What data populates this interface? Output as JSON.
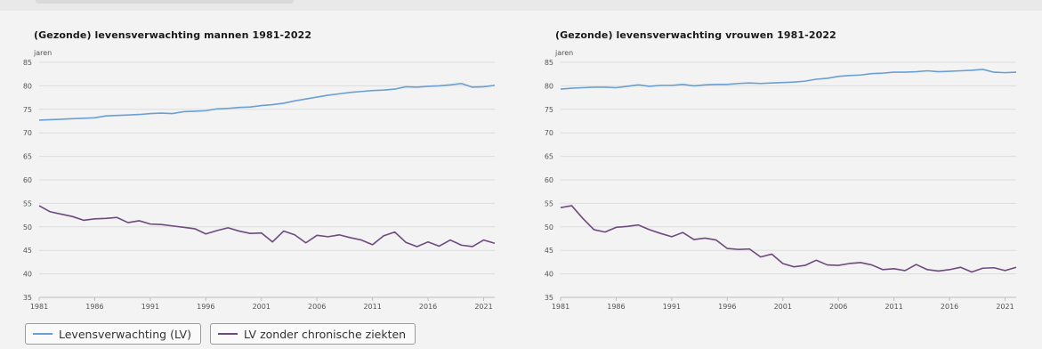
{
  "colors": {
    "lv": "#6a9fd6",
    "lv_zonder": "#6e4a7e",
    "grid": "#dcdcdc",
    "axis_text": "#555555"
  },
  "legend": [
    {
      "label": "Levensverwachting (LV)",
      "color": "#6a9fd6"
    },
    {
      "label": "LV zonder chronische ziekten",
      "color": "#6e4a7e"
    }
  ],
  "chart_data": [
    {
      "type": "line",
      "title": "(Gezonde) levensverwachting mannen 1981-2022",
      "ylabel": "jaren",
      "xlabel": "",
      "ylim": [
        35,
        85
      ],
      "yticks": [
        35,
        40,
        45,
        50,
        55,
        60,
        65,
        70,
        75,
        80,
        85
      ],
      "xlim": [
        1981,
        2022
      ],
      "xticks": [
        1981,
        1986,
        1991,
        1996,
        2001,
        2006,
        2011,
        2016,
        2021
      ],
      "grid": true,
      "legend_placement": "bottom-left",
      "x": [
        1981,
        1982,
        1983,
        1984,
        1985,
        1986,
        1987,
        1988,
        1989,
        1990,
        1991,
        1992,
        1993,
        1994,
        1995,
        1996,
        1997,
        1998,
        1999,
        2000,
        2001,
        2002,
        2003,
        2004,
        2005,
        2006,
        2007,
        2008,
        2009,
        2010,
        2011,
        2012,
        2013,
        2014,
        2015,
        2016,
        2017,
        2018,
        2019,
        2020,
        2021,
        2022
      ],
      "series": [
        {
          "name": "Levensverwachting (LV)",
          "values": [
            72.7,
            72.8,
            72.9,
            73.0,
            73.1,
            73.2,
            73.6,
            73.7,
            73.8,
            73.9,
            74.1,
            74.2,
            74.1,
            74.5,
            74.6,
            74.7,
            75.1,
            75.2,
            75.4,
            75.5,
            75.8,
            76.0,
            76.3,
            76.8,
            77.2,
            77.6,
            78.0,
            78.3,
            78.6,
            78.8,
            79.0,
            79.1,
            79.3,
            79.8,
            79.7,
            79.9,
            80.0,
            80.2,
            80.5,
            79.7,
            79.8,
            80.1
          ]
        },
        {
          "name": "LV zonder chronische ziekten",
          "values": [
            54.5,
            53.2,
            52.7,
            52.2,
            51.4,
            51.7,
            51.8,
            52.0,
            50.9,
            51.3,
            50.6,
            50.5,
            50.2,
            49.9,
            49.6,
            48.5,
            49.2,
            49.8,
            49.1,
            48.6,
            48.7,
            46.8,
            49.1,
            48.3,
            46.6,
            48.2,
            47.9,
            48.3,
            47.7,
            47.2,
            46.2,
            48.1,
            48.9,
            46.7,
            45.8,
            46.8,
            45.9,
            47.2,
            46.1,
            45.8,
            47.2,
            46.5
          ]
        }
      ]
    },
    {
      "type": "line",
      "title": "(Gezonde) levensverwachting vrouwen 1981-2022",
      "ylabel": "jaren",
      "xlabel": "",
      "ylim": [
        35,
        85
      ],
      "yticks": [
        35,
        40,
        45,
        50,
        55,
        60,
        65,
        70,
        75,
        80,
        85
      ],
      "xlim": [
        1981,
        2022
      ],
      "xticks": [
        1981,
        1986,
        1991,
        1996,
        2001,
        2006,
        2011,
        2016,
        2021
      ],
      "grid": true,
      "x": [
        1981,
        1982,
        1983,
        1984,
        1985,
        1986,
        1987,
        1988,
        1989,
        1990,
        1991,
        1992,
        1993,
        1994,
        1995,
        1996,
        1997,
        1998,
        1999,
        2000,
        2001,
        2002,
        2003,
        2004,
        2005,
        2006,
        2007,
        2008,
        2009,
        2010,
        2011,
        2012,
        2013,
        2014,
        2015,
        2016,
        2017,
        2018,
        2019,
        2020,
        2021,
        2022
      ],
      "series": [
        {
          "name": "Levensverwachting (LV)",
          "values": [
            79.3,
            79.5,
            79.6,
            79.7,
            79.7,
            79.6,
            79.9,
            80.2,
            79.9,
            80.1,
            80.1,
            80.3,
            80.0,
            80.2,
            80.3,
            80.3,
            80.5,
            80.6,
            80.5,
            80.6,
            80.7,
            80.8,
            81.0,
            81.4,
            81.6,
            82.0,
            82.2,
            82.3,
            82.6,
            82.7,
            82.9,
            82.9,
            83.0,
            83.2,
            83.0,
            83.1,
            83.2,
            83.3,
            83.5,
            82.9,
            82.8,
            82.9
          ]
        },
        {
          "name": "LV zonder chronische ziekten",
          "values": [
            54.1,
            54.5,
            51.8,
            49.4,
            48.9,
            49.9,
            50.1,
            50.4,
            49.4,
            48.6,
            47.9,
            48.8,
            47.3,
            47.6,
            47.2,
            45.4,
            45.2,
            45.3,
            43.6,
            44.2,
            42.2,
            41.5,
            41.8,
            42.9,
            41.9,
            41.8,
            42.2,
            42.4,
            41.9,
            40.9,
            41.1,
            40.7,
            42.0,
            40.9,
            40.6,
            40.9,
            41.4,
            40.4,
            41.2,
            41.3,
            40.7,
            41.4
          ]
        }
      ]
    }
  ]
}
